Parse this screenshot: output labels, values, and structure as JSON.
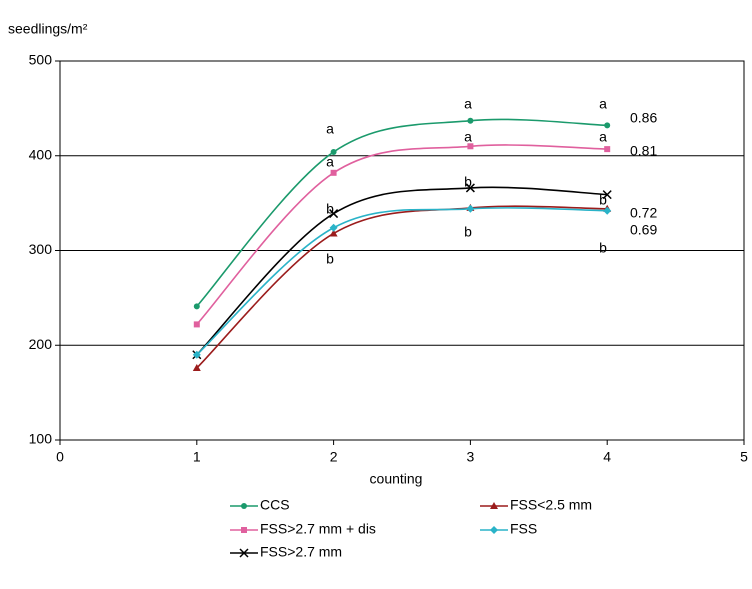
{
  "chart_data": {
    "type": "line",
    "y_label": "seedlings/m²",
    "x_label": "counting",
    "x": [
      1,
      2,
      3,
      4
    ],
    "series": [
      {
        "name": "CCS",
        "color": "#1b9a6c",
        "marker": "circle",
        "values": [
          241,
          404,
          437,
          432
        ]
      },
      {
        "name": "FSS>2.7 mm + dis",
        "color": "#e0609e",
        "marker": "square",
        "values": [
          222,
          382,
          410,
          407
        ]
      },
      {
        "name": "FSS>2.7 mm",
        "color": "#000000",
        "marker": "x",
        "values": [
          190,
          339,
          366,
          359
        ]
      },
      {
        "name": "FSS<2.5 mm",
        "color": "#9b1c1c",
        "marker": "triangle",
        "values": [
          176,
          318,
          345,
          344
        ]
      },
      {
        "name": "FSS",
        "color": "#2ab3c8",
        "marker": "diamond",
        "values": [
          190,
          324,
          344,
          342
        ]
      }
    ],
    "annotations": [
      "a",
      "a",
      "b",
      "b",
      "a",
      "a",
      "b",
      "b",
      "a",
      "a",
      "b",
      "b",
      "0.86",
      "0.81",
      "0.72",
      "0.69"
    ],
    "xlim": [
      0,
      5
    ],
    "ylim": [
      100,
      500
    ],
    "xticks": [
      0,
      1,
      2,
      3,
      4,
      5
    ],
    "yticks": [
      100,
      200,
      300,
      400,
      500
    ],
    "grid": true
  }
}
